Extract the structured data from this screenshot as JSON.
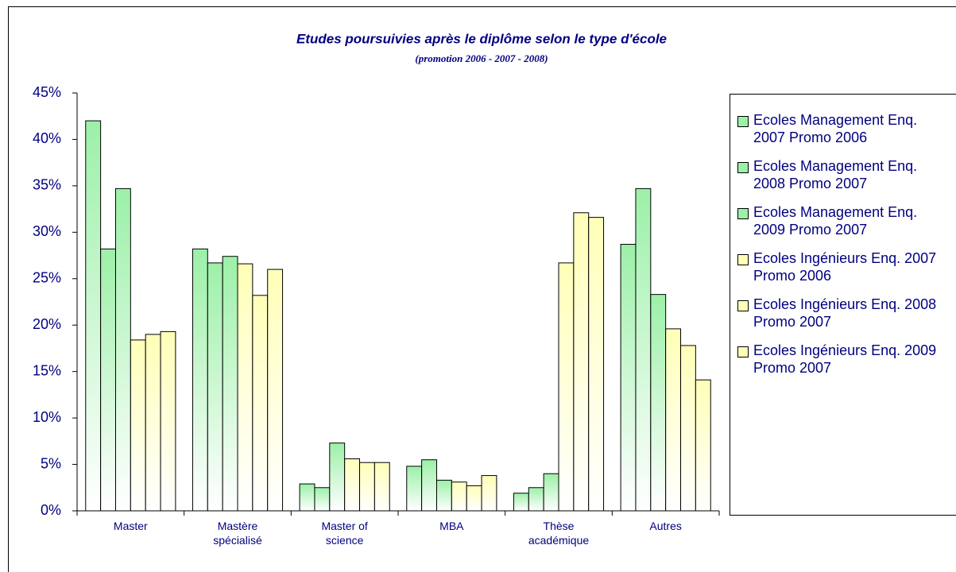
{
  "chart_data": {
    "type": "bar",
    "title": "Etudes poursuivies après le diplôme selon le type d'école",
    "subtitle": "(promotion 2006 - 2007 - 2008)",
    "categories": [
      "Master",
      "Mastère spécialisé",
      "Master of science",
      "MBA",
      "Thèse académique",
      "Autres"
    ],
    "series": [
      {
        "name": "Ecoles Management Enq. 2007 Promo 2006",
        "color": "#9cf0a8",
        "values": [
          42,
          28.2,
          2.9,
          4.8,
          1.9,
          28.7
        ]
      },
      {
        "name": "Ecoles Management Enq. 2008 Promo 2007",
        "color": "#9cf0a8",
        "values": [
          28.2,
          26.7,
          2.5,
          5.5,
          2.5,
          34.7
        ]
      },
      {
        "name": "Ecoles Management Enq. 2009 Promo 2007",
        "color": "#9cf0a8",
        "values": [
          34.7,
          27.4,
          7.3,
          3.3,
          4.0,
          23.3
        ]
      },
      {
        "name": "Ecoles Ingénieurs Enq. 2007 Promo 2006",
        "color": "#ffffb8",
        "values": [
          18.4,
          26.6,
          5.6,
          3.1,
          26.7,
          19.6
        ]
      },
      {
        "name": "Ecoles Ingénieurs Enq. 2008 Promo 2007",
        "color": "#ffffb8",
        "values": [
          19.0,
          23.2,
          5.2,
          2.7,
          32.1,
          17.8
        ]
      },
      {
        "name": "Ecoles Ingénieurs Enq. 2009 Promo 2007",
        "color": "#ffffb8",
        "values": [
          19.3,
          26.0,
          5.2,
          3.8,
          31.6,
          14.1
        ]
      }
    ],
    "ylim": [
      0,
      45
    ],
    "yticks": [
      {
        "value": 0,
        "label": "0%"
      },
      {
        "value": 5,
        "label": "5%"
      },
      {
        "value": 10,
        "label": "10%"
      },
      {
        "value": 15,
        "label": "15%"
      },
      {
        "value": 20,
        "label": "20%"
      },
      {
        "value": 25,
        "label": "25%"
      },
      {
        "value": 30,
        "label": "30%"
      },
      {
        "value": 35,
        "label": "35%"
      },
      {
        "value": 40,
        "label": "40%"
      },
      {
        "value": 45,
        "label": "45%"
      }
    ],
    "legend": "right"
  }
}
